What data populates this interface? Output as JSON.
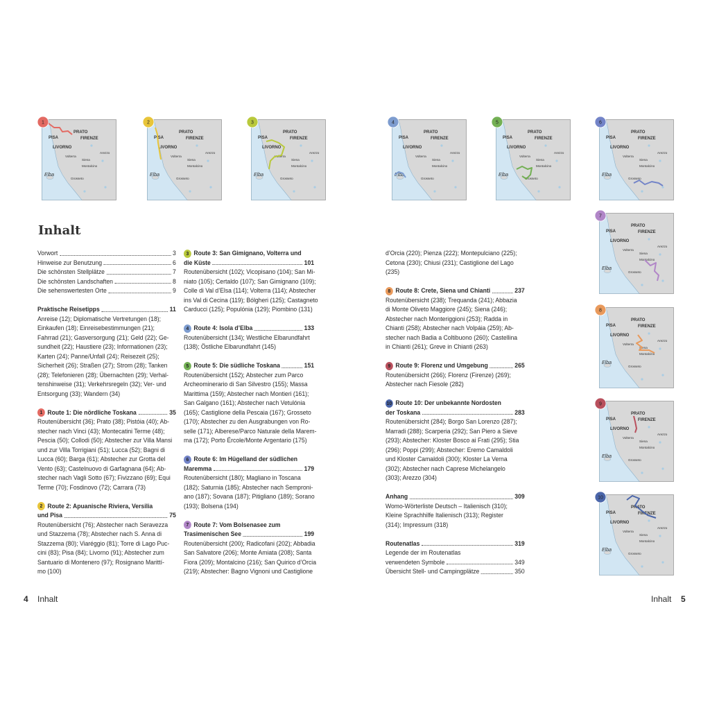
{
  "maps": [
    {
      "number": "1"
    },
    {
      "number": "2"
    },
    {
      "number": "3"
    },
    {
      "number": "4"
    },
    {
      "number": "5"
    },
    {
      "number": "6"
    },
    {
      "number": "7"
    },
    {
      "number": "8"
    },
    {
      "number": "9"
    },
    {
      "number": "10"
    }
  ],
  "map_labels": {
    "prato": "PRATO",
    "pisa": "PISA",
    "firenze": "FIRENZE",
    "livorno": "LIVORNO",
    "volterra": "Volterra",
    "arezzo": "Arezzo",
    "siena": "Siena",
    "montalcino": "Montalcino",
    "elba": "Elba",
    "grosseto": "Grosseto"
  },
  "title": "Inhalt",
  "columns": [
    [
      {
        "lines": [
          {
            "text": "Vorwort",
            "page": "3"
          },
          {
            "text": "Hinweise zur Benutzung",
            "page": "6"
          },
          {
            "text": "Die schönsten Stellplätze",
            "page": "7"
          },
          {
            "text": "Die schönsten Landschaften",
            "page": "8"
          },
          {
            "text": "Die sehenswertesten Orte",
            "page": "9"
          }
        ]
      },
      {
        "heading": [
          "Praktische Reisetipps"
        ],
        "page": "11",
        "lines": [
          "Anreise (12); Diplomatische Vertretungen (18);",
          "Einkaufen (18); Einreisebestimmungen (21);",
          "Fahrrad (21); Gasversorgung (21); Geld (22); Ge-",
          "sundheit (22); Haustiere (23); Informationen (23);",
          "Karten (24); Panne/Unfall (24); Reisezeit (25);",
          "Sicherheit (26); Straßen (27); Strom (28); Tanken",
          "(28); Telefonieren (28); Übernachten (29); Verhal-",
          "tenshinweise (31); Verkehrsregeln (32); Ver- und",
          "Entsorgung (33); Wandern (34)"
        ]
      },
      {
        "badge": "1",
        "heading": [
          "Route 1: Die nördliche Toskana"
        ],
        "page": "35",
        "lines": [
          "Routenübersicht (36); Prato (38); Pistóia (40); Ab-",
          "stecher nach Vinci (43); Montecatini Terme (48);",
          "Pescia (50); Collodi (50); Abstecher zur Villa Mansi",
          "und zur Villa Torrigiani (51); Lucca (52); Bagni di",
          "Lucca (60); Barga (61); Abstecher zur Grotta del",
          "Vento (63); Castelnuovo di Garfagnana (64); Ab-",
          "stecher nach Vagli Sotto (67); Fivizzano (69); Equi",
          "Terme (70); Fosdinovo (72); Carrara (73)"
        ]
      },
      {
        "badge": "2",
        "heading": [
          "Route 2: Apuanische Riviera, Versilia",
          "und Pisa"
        ],
        "page": "75",
        "lines": [
          "Routenübersicht (76); Abstecher nach Seravezza",
          "und Stazzema (78); Abstecher nach S. Anna di",
          "Stazzema (80); Viaréggio (81); Torre di Lago Puc-",
          "cini (83); Pisa (84); Livorno (91); Abstecher zum",
          "Santuario di Montenero (97); Rosignano Marittí-",
          "mo (100)"
        ]
      }
    ],
    [
      {
        "badge": "3",
        "heading": [
          "Route 3: San Gimignano, Volterra und",
          "die Küste"
        ],
        "page": "101",
        "lines": [
          "Routenübersicht (102); Vicopisano (104); San Mi-",
          "niato (105); Certaldo (107); San Gimignano (109);",
          "Colle di Val d’Elsa (114); Volterra (114); Abstecher",
          "ins Val di Cecina (119); Bólgheri (125); Castagneto",
          "Carducci (125); Populónia (129); Piombino (131)"
        ]
      },
      {
        "badge": "4",
        "heading": [
          "Route 4: Isola d’Elba"
        ],
        "page": "133",
        "lines": [
          "Routenübersicht (134); Westliche Elbarundfahrt",
          "(138); Östliche Elbarundfahrt (145)"
        ]
      },
      {
        "badge": "5",
        "heading": [
          "Route 5: Die südliche Toskana"
        ],
        "page": "151",
        "lines": [
          "Routenübersicht (152); Abstecher zum Parco",
          "Archeominerario di San Silvestro (155); Massa",
          "Marittima (159); Abstecher nach Montieri (161);",
          "San Galgano (161); Abstecher nach Vetulónia",
          "(165); Castiglione della Pescaia (167); Grosseto",
          "(170); Abstecher zu den Ausgrabungen von Ro-",
          "selle (171); Alberese/Parco Naturale della Marem-",
          "ma (172); Porto Ércole/Monte Argentario (175)"
        ]
      },
      {
        "badge": "6",
        "heading": [
          "Route 6: Im Hügelland der südlichen",
          "Maremma"
        ],
        "page": "179",
        "lines": [
          "Routenübersicht (180); Magliano in Toscana",
          "(182); Saturnia (185); Abstecher nach Semproni-",
          "ano (187); Sovana (187); Pitigliano (189); Sorano",
          "(193); Bolsena (194)"
        ]
      },
      {
        "badge": "7",
        "heading": [
          "Route 7: Vom Bolsenasee zum",
          "Trasimenischen See"
        ],
        "page": "199",
        "lines": [
          "Routenübersicht (200); Radicofani (202); Abbadia",
          "San Salvatore (206); Monte Amiata (208); Santa",
          "Fiora (209); Montalcino (216); San Quirico d’Orcia",
          "(219); Abstecher: Bagno Vignoni und Castiglione"
        ]
      }
    ],
    [
      {
        "lines": [
          "d’Orcia (220); Pienza (222); Montepulciano (225);",
          "Cetona (230); Chiusi (231); Castiglione del Lago",
          "(235)"
        ]
      },
      {
        "badge": "8",
        "heading": [
          "Route 8: Crete, Siena und Chianti"
        ],
        "page": "237",
        "lines": [
          "Routenübersicht (238); Trequanda (241); Abbazia",
          "di Monte Oliveto Maggiore (245); Siena (246);",
          "Abstecher nach Monteriggioni (253); Radda in",
          "Chianti (258); Abstecher nach Volpáia (259); Ab-",
          "stecher nach Badia a Coltibuono (260); Castellina",
          "in Chianti (261); Greve in Chianti (263)"
        ]
      },
      {
        "badge": "9",
        "heading": [
          "Route 9: Florenz und Umgebung"
        ],
        "page": "265",
        "lines": [
          "Routenübersicht (266); Florenz (Firenze) (269);",
          "Abstecher nach Fiesole (282)"
        ]
      },
      {
        "badge": "10",
        "heading": [
          "Route 10: Der unbekannte Nordosten",
          "der Toskana"
        ],
        "page": "283",
        "lines": [
          "Routenübersicht (284); Borgo San Lorenzo (287);",
          "Marradi (288); Scarperia (292); San Piero a Sieve",
          "(293); Abstecher: Kloster Bosco ai Frati (295); Stia",
          "(296); Poppi (299); Abstecher: Eremo Camaldoli",
          "und Kloster Camaldoli (300); Kloster La Verna",
          "(302); Abstecher nach Caprese Michelangelo",
          "(303); Arezzo (304)"
        ]
      },
      {
        "heading": [
          "Anhang"
        ],
        "page": "309",
        "lines": [
          "Womo-Wörterliste Deutsch – Italienisch (310);",
          "Kleine Sprachhilfe Italienisch (313); Register",
          "(314); Impressum (318)"
        ]
      },
      {
        "heading": [
          "Routenatlas"
        ],
        "page": "319",
        "lines": [
          "Legende der im Routenatlas",
          {
            "text": "verwendeten Symbole",
            "page": "349"
          },
          {
            "text": "Übersicht Stell- und Campingplätze",
            "page": "350"
          }
        ]
      }
    ]
  ],
  "footer": {
    "left": {
      "page": "4",
      "label": "Inhalt"
    },
    "right": {
      "label": "Inhalt",
      "page": "5"
    }
  }
}
